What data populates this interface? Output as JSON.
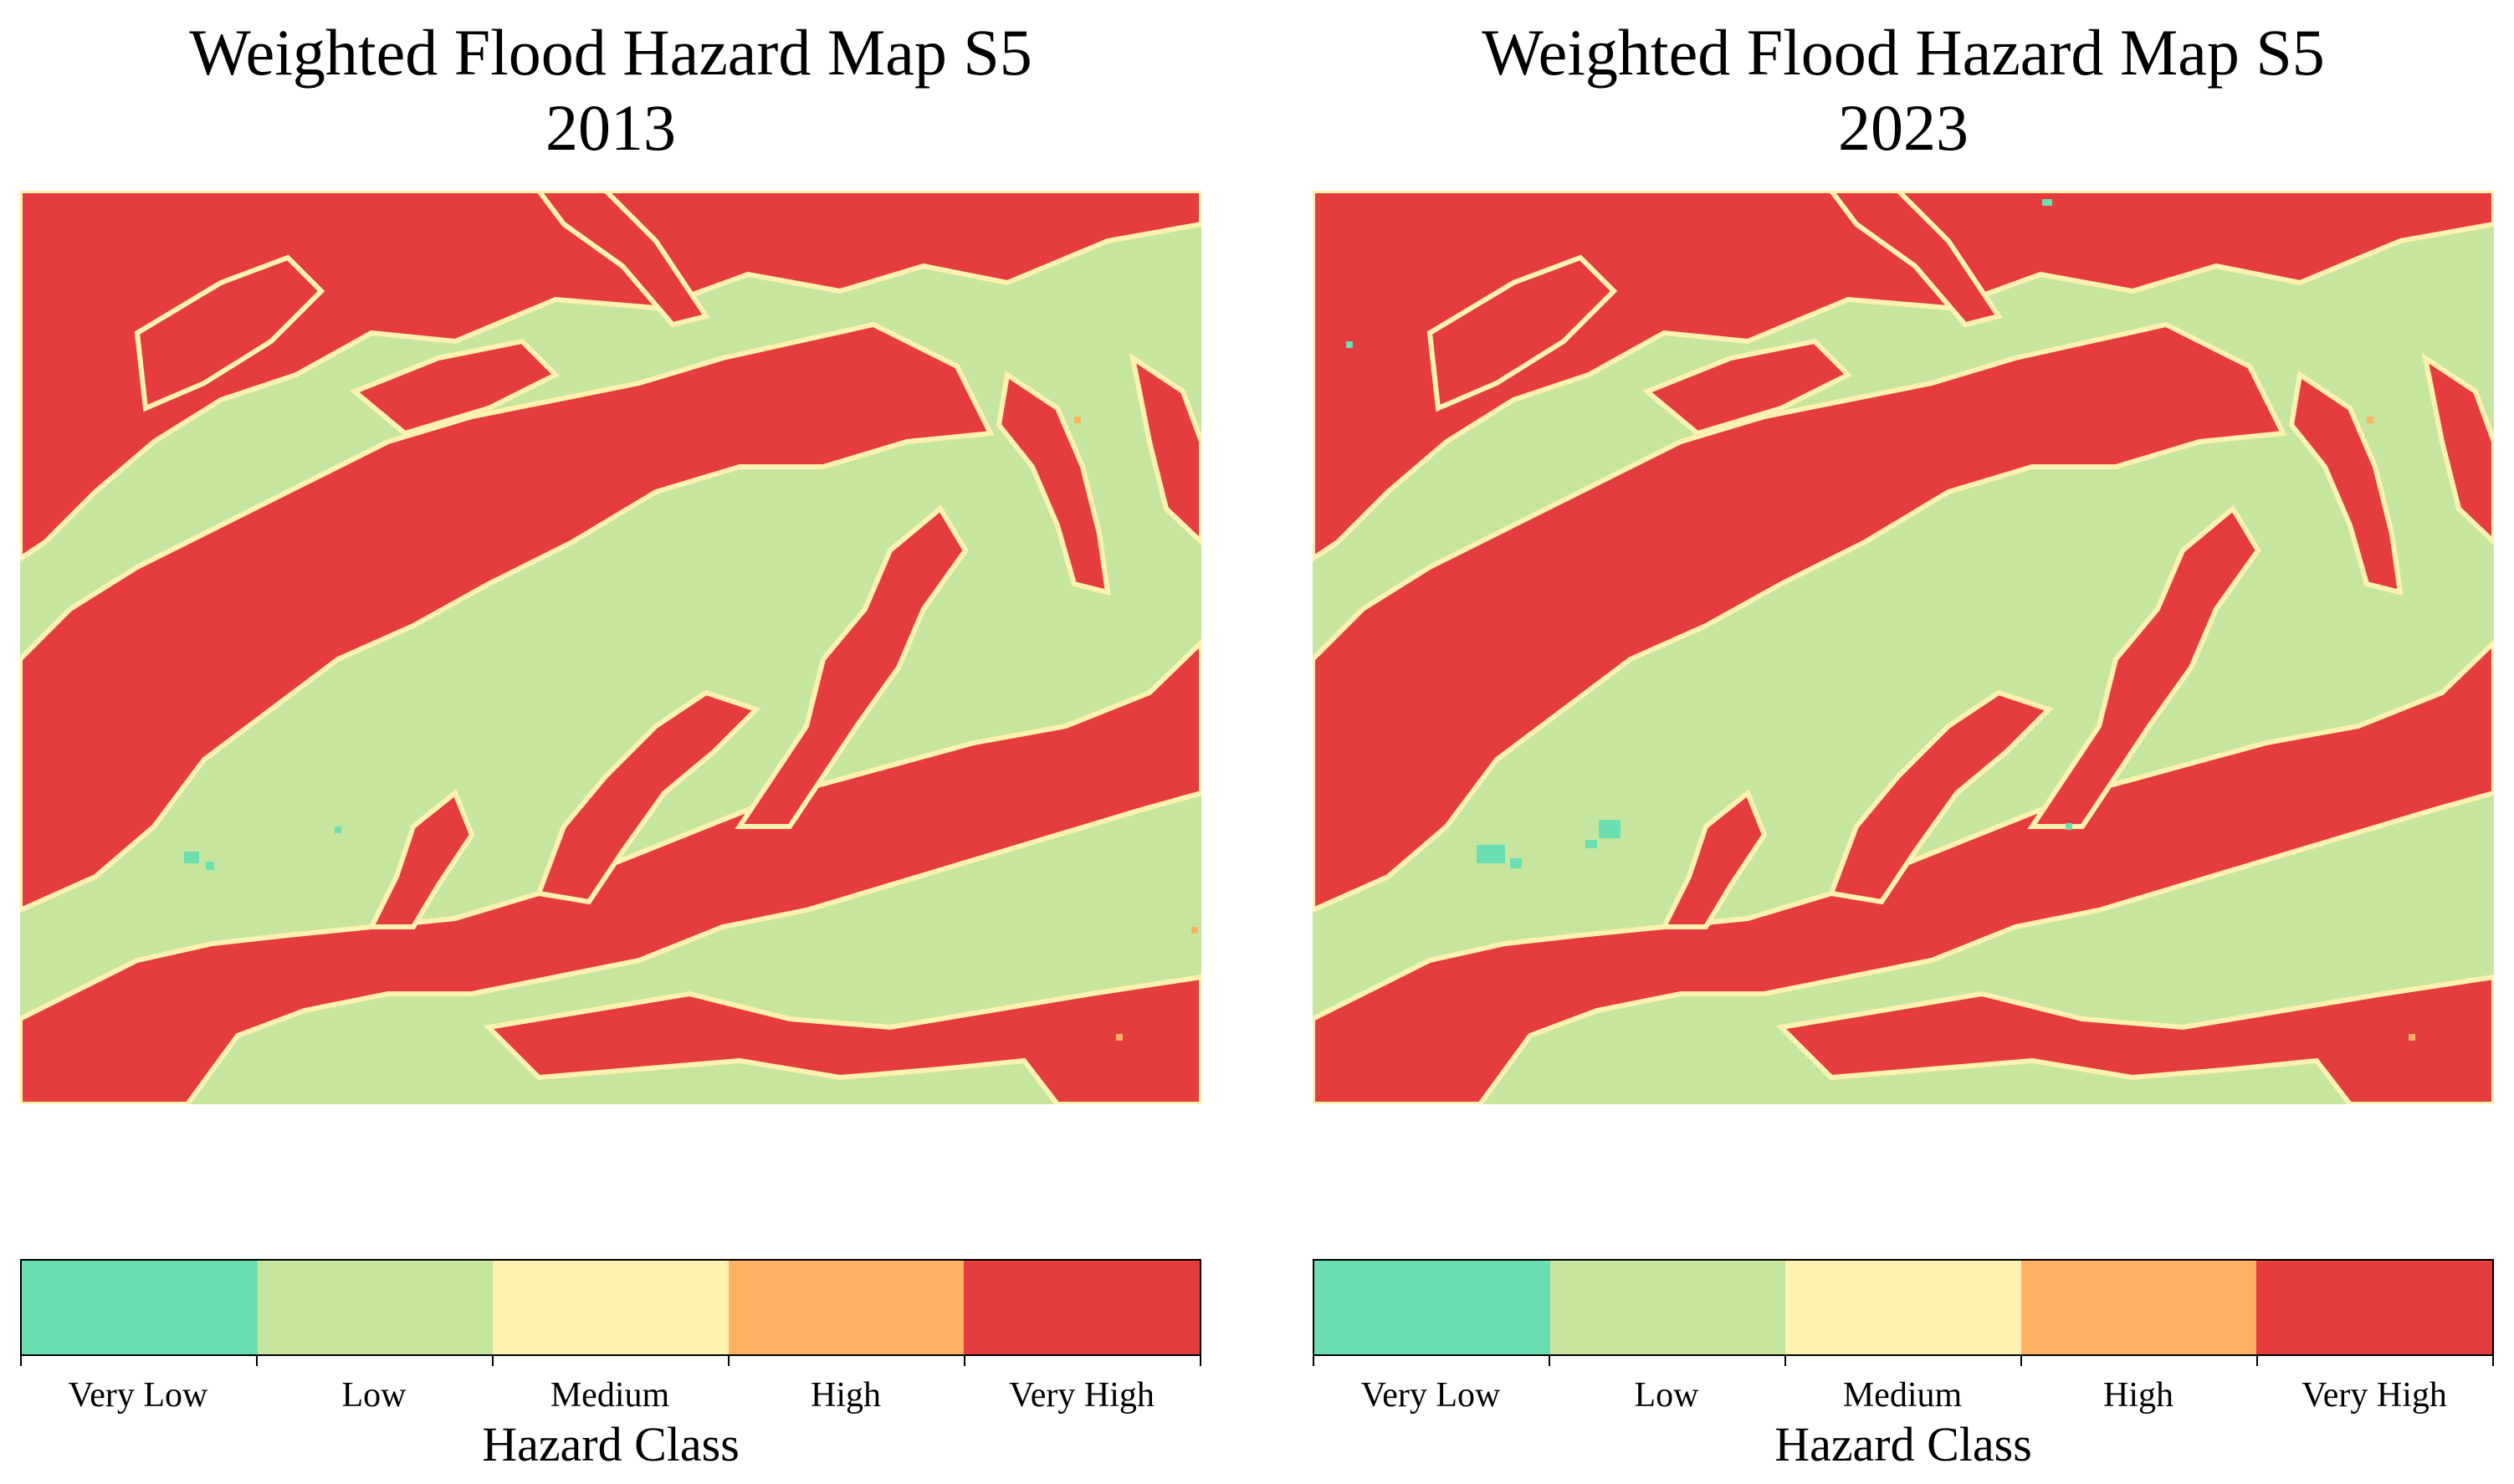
{
  "colors": {
    "very_low": "#6bdeb2",
    "low": "#c6e69f",
    "medium": "#fff2b0",
    "high": "#fdb163",
    "very_high": "#e53d3d"
  },
  "panels": [
    {
      "title_line1": "Weighted Flood Hazard Map S5",
      "title_line2": "2013",
      "legend": {
        "title": "Hazard Class",
        "classes": [
          "Very Low",
          "Low",
          "Medium",
          "High",
          "Very High"
        ]
      }
    },
    {
      "title_line1": "Weighted Flood Hazard Map S5",
      "title_line2": "2023",
      "legend": {
        "title": "Hazard Class",
        "classes": [
          "Very Low",
          "Low",
          "Medium",
          "High",
          "Very High"
        ]
      }
    }
  ]
}
